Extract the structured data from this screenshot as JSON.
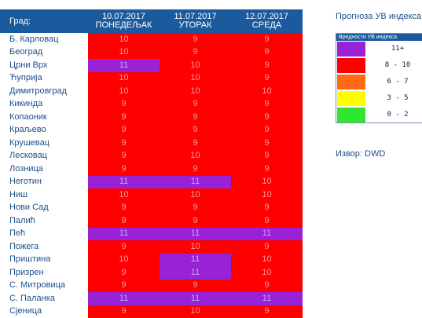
{
  "table": {
    "city_header": "Град:",
    "dates": [
      {
        "date": "10.07.2017",
        "day": "ПОНЕДЕЉАК"
      },
      {
        "date": "11.07.2017",
        "day": "УТОРАК"
      },
      {
        "date": "12.07.2017",
        "day": "СРЕДА"
      }
    ],
    "rows": [
      {
        "city": "Б. Карловац",
        "values": [
          "10",
          "9",
          "9"
        ],
        "colors": [
          "red",
          "red",
          "red"
        ]
      },
      {
        "city": "Београд",
        "values": [
          "10",
          "9",
          "9"
        ],
        "colors": [
          "red",
          "red",
          "red"
        ]
      },
      {
        "city": "Црни Врх",
        "values": [
          "11",
          "10",
          "9"
        ],
        "colors": [
          "purple",
          "red",
          "red"
        ]
      },
      {
        "city": "Ћуприја",
        "values": [
          "10",
          "10",
          "9"
        ],
        "colors": [
          "red",
          "red",
          "red"
        ]
      },
      {
        "city": "Димитровград",
        "values": [
          "10",
          "10",
          "10"
        ],
        "colors": [
          "red",
          "red",
          "red"
        ]
      },
      {
        "city": "Кикинда",
        "values": [
          "9",
          "9",
          "9"
        ],
        "colors": [
          "red",
          "red",
          "red"
        ]
      },
      {
        "city": "Копаоник",
        "values": [
          "9",
          "9",
          "9"
        ],
        "colors": [
          "red",
          "red",
          "red"
        ]
      },
      {
        "city": "Краљево",
        "values": [
          "9",
          "9",
          "9"
        ],
        "colors": [
          "red",
          "red",
          "red"
        ]
      },
      {
        "city": "Крушевац",
        "values": [
          "9",
          "9",
          "9"
        ],
        "colors": [
          "red",
          "red",
          "red"
        ]
      },
      {
        "city": "Лесковац",
        "values": [
          "9",
          "10",
          "9"
        ],
        "colors": [
          "red",
          "red",
          "red"
        ]
      },
      {
        "city": "Лозница",
        "values": [
          "9",
          "9",
          "9"
        ],
        "colors": [
          "red",
          "red",
          "red"
        ]
      },
      {
        "city": "Неготин",
        "values": [
          "11",
          "11",
          "10"
        ],
        "colors": [
          "purple",
          "purple",
          "red"
        ]
      },
      {
        "city": "Ниш",
        "values": [
          "10",
          "10",
          "10"
        ],
        "colors": [
          "red",
          "red",
          "red"
        ]
      },
      {
        "city": "Нови Сад",
        "values": [
          "9",
          "9",
          "9"
        ],
        "colors": [
          "red",
          "red",
          "red"
        ]
      },
      {
        "city": "Палић",
        "values": [
          "9",
          "9",
          "9"
        ],
        "colors": [
          "red",
          "red",
          "red"
        ]
      },
      {
        "city": "Пећ",
        "values": [
          "11",
          "11",
          "11"
        ],
        "colors": [
          "purple",
          "purple",
          "purple"
        ]
      },
      {
        "city": "Пожега",
        "values": [
          "9",
          "10",
          "9"
        ],
        "colors": [
          "red",
          "red",
          "red"
        ]
      },
      {
        "city": "Приштина",
        "values": [
          "10",
          "11",
          "10"
        ],
        "colors": [
          "red",
          "purple",
          "red"
        ]
      },
      {
        "city": "Призрен",
        "values": [
          "9",
          "11",
          "10"
        ],
        "colors": [
          "red",
          "purple",
          "red"
        ]
      },
      {
        "city": "С. Митровица",
        "values": [
          "9",
          "9",
          "9"
        ],
        "colors": [
          "red",
          "red",
          "red"
        ]
      },
      {
        "city": "С. Паланка",
        "values": [
          "11",
          "11",
          "11"
        ],
        "colors": [
          "purple",
          "purple",
          "purple"
        ]
      },
      {
        "city": "Сјеница",
        "values": [
          "9",
          "10",
          "9"
        ],
        "colors": [
          "red",
          "red",
          "red"
        ]
      }
    ]
  },
  "legend": {
    "title": "Прогноза УВ индекса",
    "header": "Вредности УВ индекса",
    "items": [
      {
        "label": "11+",
        "color": "#9a22d6"
      },
      {
        "label": "8 - 10",
        "color": "#ff0000"
      },
      {
        "label": "6 - 7",
        "color": "#ff6a13"
      },
      {
        "label": "3 - 5",
        "color": "#ffff00"
      },
      {
        "label": "0 - 2",
        "color": "#2ee82e"
      }
    ]
  },
  "colors": {
    "red": "#ff0000",
    "purple": "#9a22d6",
    "header_blue": "#1c5a9e"
  },
  "source": "Извор: DWD"
}
